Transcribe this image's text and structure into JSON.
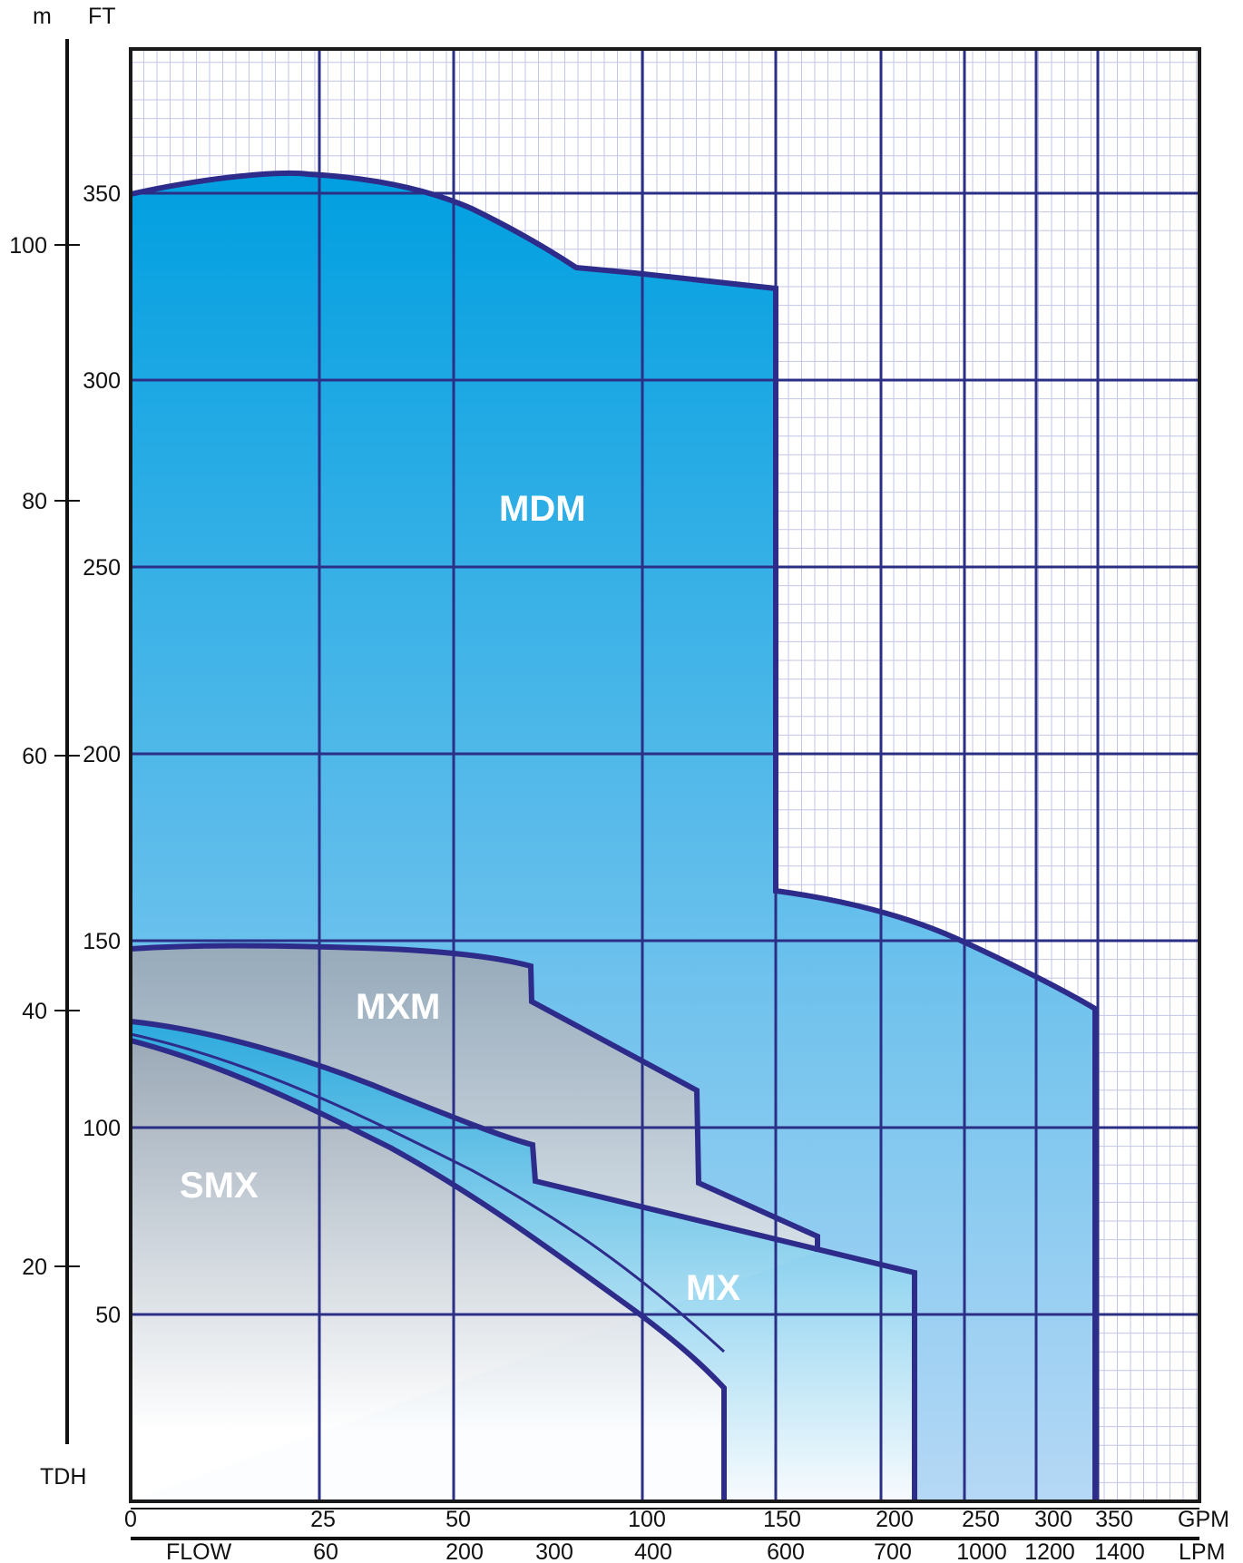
{
  "chart_data": {
    "type": "area",
    "title": "",
    "colors": {
      "grid_major": "#2b2f86",
      "grid_minor": "#c3c6e8",
      "outline": "#2e2c8a",
      "mdm_top": "#009fe0",
      "mdm_bottom": "#b5d8f5",
      "gray_top": "#9aa8b6",
      "gray_bottom": "#ffffff",
      "mx_top": "#1fa8e0",
      "mx_bottom": "#ffffff"
    },
    "left_axis": {
      "unit_label": "m",
      "ticks": [
        "20",
        "40",
        "60",
        "80",
        "100"
      ],
      "bottom_label": "TDH"
    },
    "ft_axis": {
      "unit_label": "FT",
      "range": [
        0,
        380
      ],
      "ticks": [
        "50",
        "100",
        "150",
        "200",
        "250",
        "300",
        "350"
      ]
    },
    "gpm_axis": {
      "unit_label": "GPM",
      "ticks": [
        "0",
        "25",
        "50",
        "100",
        "150",
        "200",
        "250",
        "300",
        "350"
      ]
    },
    "lpm_axis": {
      "unit_label": "LPM",
      "left_label": "FLOW",
      "ticks": [
        "60",
        "200",
        "300",
        "400",
        "600",
        "700",
        "1000",
        "1200",
        "1400"
      ]
    },
    "series": [
      {
        "name": "MDM",
        "outline": [
          {
            "x": "0",
            "y": 342
          },
          {
            "x": "25",
            "y": 347
          },
          {
            "x": "50",
            "y": 340
          },
          {
            "x": "(~110)",
            "y": 320
          },
          {
            "x": "150",
            "y": 315
          },
          {
            "x": "150",
            "y": 158
          },
          {
            "x": "200",
            "y": 150
          },
          {
            "x": "250",
            "y": 133
          },
          {
            "x": "350",
            "y": 128
          },
          {
            "x": "350",
            "y": 0
          },
          {
            "x": "0",
            "y": 0
          }
        ]
      },
      {
        "name": "MXM",
        "outline": [
          {
            "x": "0",
            "y": 145
          },
          {
            "x": "(~30)",
            "y": 145
          },
          {
            "x": "(~90)",
            "y": 141
          },
          {
            "x": "(~90)",
            "y": 131
          },
          {
            "x": "(~125)",
            "y": 108
          },
          {
            "x": "(~125)",
            "y": 83
          },
          {
            "x": "(~170)",
            "y": 72
          },
          {
            "x": "(~170)",
            "y": 68
          },
          {
            "x": "0",
            "y": 0
          }
        ]
      },
      {
        "name": "MX",
        "outline": [
          {
            "x": "0",
            "y": 128
          },
          {
            "x": "25",
            "y": 116
          },
          {
            "x": "50",
            "y": 105
          },
          {
            "x": "(~90)",
            "y": 91
          },
          {
            "x": "(~90)",
            "y": 82
          },
          {
            "x": "(~210)",
            "y": 62
          },
          {
            "x": "(~210)",
            "y": 0
          },
          {
            "x": "(~135)",
            "y": 0
          }
        ]
      },
      {
        "name": "SMX",
        "outline": [
          {
            "x": "0",
            "y": 124
          },
          {
            "x": "25",
            "y": 101
          },
          {
            "x": "50",
            "y": 82
          },
          {
            "x": "(~110)",
            "y": 50
          },
          {
            "x": "(~135)",
            "y": 29
          },
          {
            "x": "(~135)",
            "y": 0
          },
          {
            "x": "0",
            "y": 0
          }
        ]
      }
    ],
    "legend": "labels placed inside regions",
    "grid": true
  }
}
